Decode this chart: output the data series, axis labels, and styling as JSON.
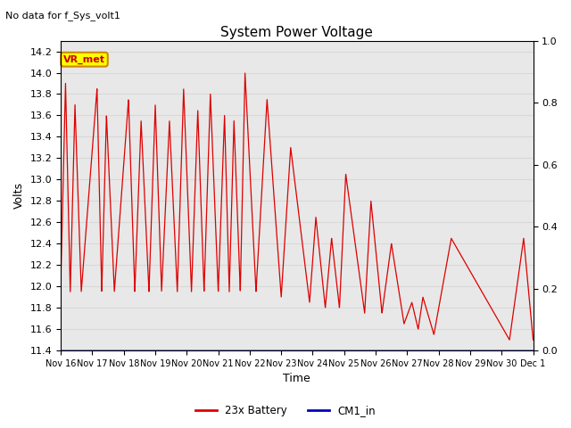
{
  "title": "System Power Voltage",
  "subtitle": "No data for f_Sys_volt1",
  "xlabel": "Time",
  "ylabel_left": "Volts",
  "ylim_left": [
    11.4,
    14.3
  ],
  "ylim_right": [
    0.0,
    1.0
  ],
  "yticks_left": [
    11.4,
    11.6,
    11.8,
    12.0,
    12.2,
    12.4,
    12.6,
    12.8,
    13.0,
    13.2,
    13.4,
    13.6,
    13.8,
    14.0,
    14.2
  ],
  "yticks_right": [
    0.0,
    0.2,
    0.4,
    0.6,
    0.8,
    1.0
  ],
  "xtick_labels": [
    "Nov 16",
    "Nov 17",
    "Nov 18",
    "Nov 19",
    "Nov 20",
    "Nov 21",
    "Nov 22",
    "Nov 23",
    "Nov 24",
    "Nov 25",
    "Nov 26",
    "Nov 27",
    "Nov 28",
    "Nov 29",
    "Nov 30",
    "Dec 1"
  ],
  "line_color_battery": "#dd0000",
  "line_color_cm1": "#0000bb",
  "legend_battery": "23x Battery",
  "legend_cm1": "CM1_in",
  "annotation_label": "VR_met",
  "annotation_color_bg": "#ffff00",
  "annotation_color_border": "#cc8800",
  "bg_color": "#ffffff",
  "grid_color": "#d8d8d8",
  "n_days": 15,
  "peaks_t": [
    0.15,
    0.45,
    1.15,
    1.45,
    2.15,
    2.55,
    3.0,
    3.45,
    3.9,
    4.35,
    4.75,
    5.2,
    5.5,
    5.85,
    6.55,
    7.3,
    8.1,
    8.6,
    9.05,
    9.85,
    10.5,
    11.15,
    11.5,
    12.4,
    14.7
  ],
  "peaks_v": [
    13.9,
    13.7,
    13.85,
    13.6,
    13.75,
    13.55,
    13.7,
    13.55,
    13.85,
    13.65,
    13.8,
    13.6,
    13.55,
    14.0,
    13.75,
    13.3,
    12.65,
    12.45,
    13.05,
    12.8,
    12.4,
    11.85,
    11.9,
    12.45,
    12.45
  ],
  "valleys_t": [
    0.0,
    0.3,
    0.65,
    1.3,
    1.7,
    2.35,
    2.8,
    3.2,
    3.7,
    4.15,
    4.55,
    5.0,
    5.35,
    5.7,
    6.2,
    7.0,
    7.9,
    8.4,
    8.85,
    9.65,
    10.2,
    10.9,
    11.35,
    11.85,
    14.25,
    15.0
  ],
  "valleys_v": [
    12.05,
    11.95,
    11.95,
    11.95,
    11.95,
    11.95,
    11.95,
    11.95,
    11.95,
    11.95,
    11.95,
    11.95,
    11.95,
    11.95,
    11.95,
    11.9,
    11.85,
    11.8,
    11.8,
    11.75,
    11.75,
    11.65,
    11.6,
    11.55,
    11.5,
    11.5
  ]
}
